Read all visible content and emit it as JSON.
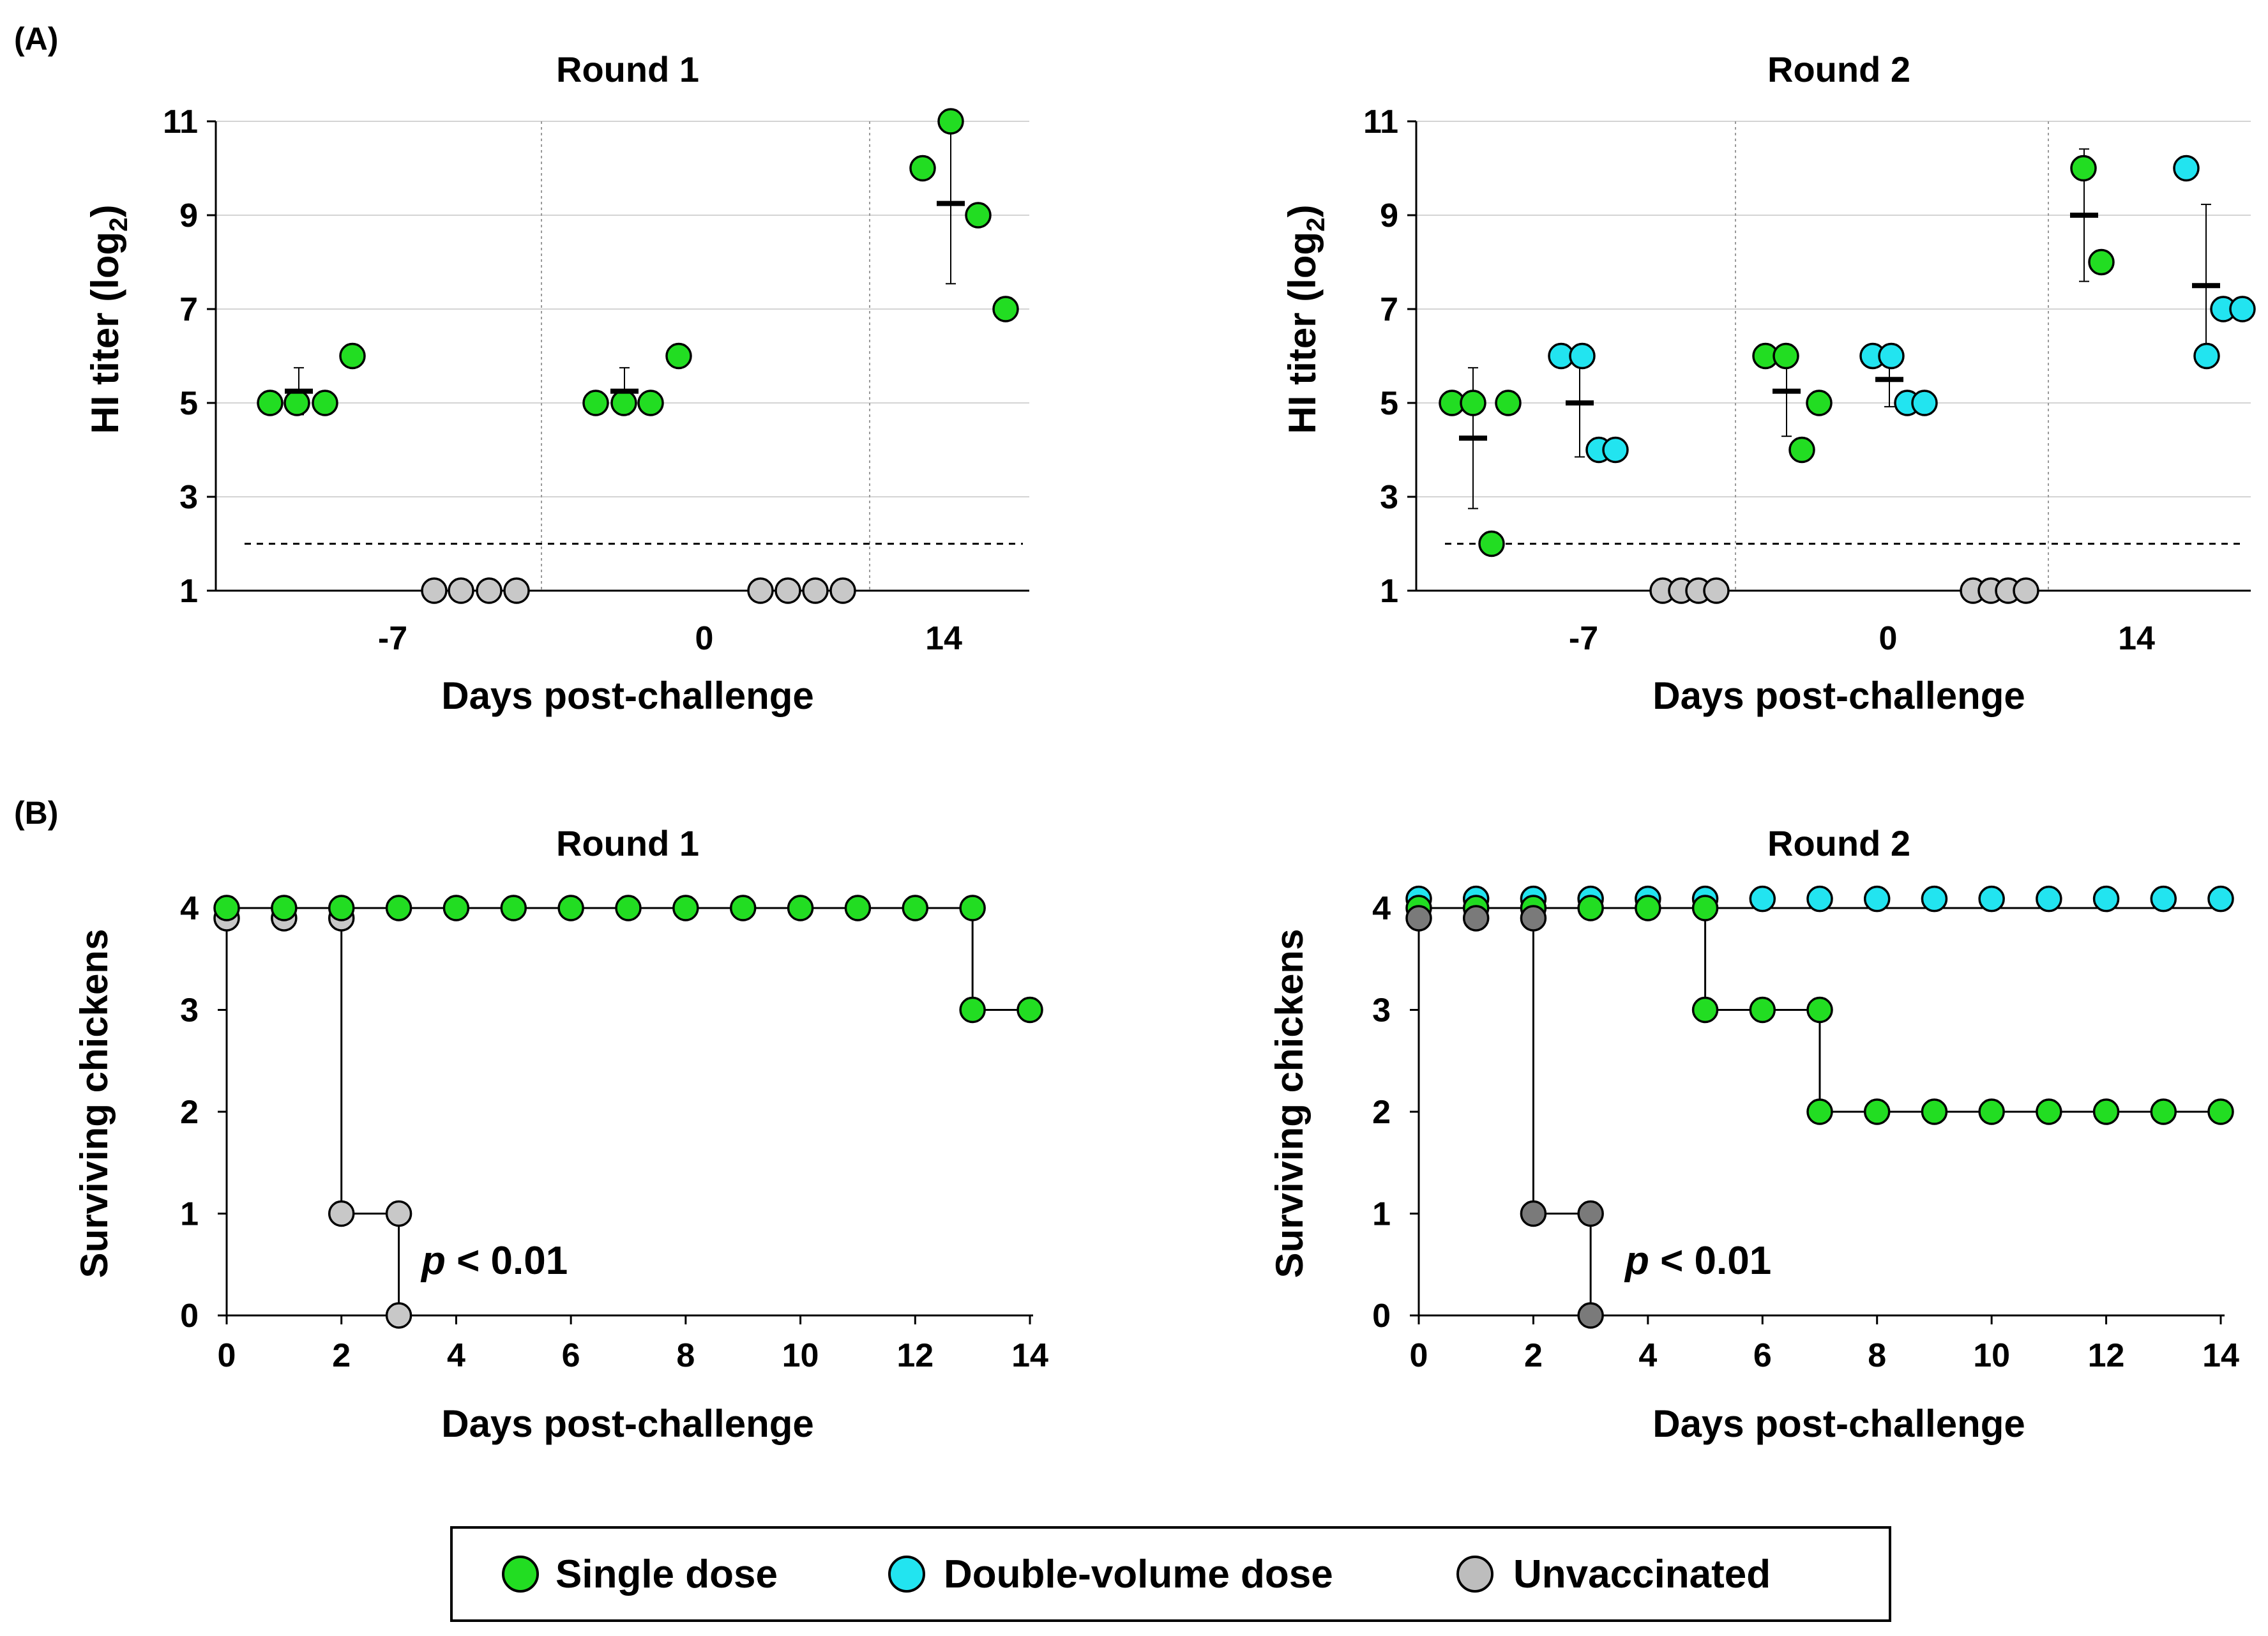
{
  "colors": {
    "single": "#22dd22",
    "double": "#22e4f0",
    "unvac_light": "#c8c8c8",
    "unvac_dark": "#7a7a7a",
    "legend_unvac": "#bdbdbd"
  },
  "panel_labels": {
    "a": "(A)",
    "b": "(B)"
  },
  "legend": {
    "items": [
      {
        "label": "Single dose",
        "color": "#22dd22"
      },
      {
        "label": "Double-volume dose",
        "color": "#22e4f0"
      },
      {
        "label": "Unvaccinated",
        "color": "#bdbdbd"
      }
    ]
  },
  "chart_data": [
    {
      "id": "A1",
      "type": "scatter",
      "title": "Round 1",
      "xlabel": "Days post-challenge",
      "ylabel_main": "HI titer (log",
      "ylabel_sub": "2",
      "ylabel_end": ")",
      "ylim": [
        1,
        11
      ],
      "yticks": [
        "1",
        "3",
        "5",
        "7",
        "9",
        "11"
      ],
      "ytick_values": [
        1,
        3,
        5,
        7,
        9,
        11
      ],
      "groups": [
        "-7",
        "0",
        "14"
      ],
      "detection_limit": 2,
      "series": [
        {
          "name": "Single dose",
          "color": "#22dd22",
          "group": "-7",
          "values": [
            5,
            5,
            5,
            6
          ],
          "mean": 5.25,
          "sd": 0.5
        },
        {
          "name": "Unvaccinated",
          "color": "#c8c8c8",
          "group": "-7",
          "values": [
            1,
            1,
            1,
            1
          ]
        },
        {
          "name": "Single dose",
          "color": "#22dd22",
          "group": "0",
          "values": [
            5,
            5,
            5,
            6
          ],
          "mean": 5.25,
          "sd": 0.5
        },
        {
          "name": "Unvaccinated",
          "color": "#c8c8c8",
          "group": "0",
          "values": [
            1,
            1,
            1,
            1
          ]
        },
        {
          "name": "Single dose",
          "color": "#22dd22",
          "group": "14",
          "values": [
            10,
            11,
            9,
            7
          ],
          "mean": 9.25,
          "sd": 1.71
        }
      ]
    },
    {
      "id": "A2",
      "type": "scatter",
      "title": "Round 2",
      "xlabel": "Days post-challenge",
      "ylabel_main": "HI titer (log",
      "ylabel_sub": "2",
      "ylabel_end": ")",
      "ylim": [
        1,
        11
      ],
      "yticks": [
        "1",
        "3",
        "5",
        "7",
        "9",
        "11"
      ],
      "ytick_values": [
        1,
        3,
        5,
        7,
        9,
        11
      ],
      "groups": [
        "-7",
        "0",
        "14"
      ],
      "detection_limit": 2,
      "series": [
        {
          "name": "Single dose",
          "color": "#22dd22",
          "group": "-7",
          "values": [
            5,
            5,
            2,
            5
          ],
          "mean": 4.25,
          "sd": 1.5
        },
        {
          "name": "Double-volume dose",
          "color": "#22e4f0",
          "group": "-7",
          "values": [
            6,
            6,
            4,
            4
          ],
          "mean": 5.0,
          "sd": 1.15
        },
        {
          "name": "Unvaccinated",
          "color": "#c8c8c8",
          "group": "-7",
          "values": [
            1,
            1,
            1,
            1
          ]
        },
        {
          "name": "Single dose",
          "color": "#22dd22",
          "group": "0",
          "values": [
            6,
            6,
            4,
            5
          ],
          "mean": 5.25,
          "sd": 0.96
        },
        {
          "name": "Double-volume dose",
          "color": "#22e4f0",
          "group": "0",
          "values": [
            6,
            6,
            5,
            5
          ],
          "mean": 5.5,
          "sd": 0.58
        },
        {
          "name": "Unvaccinated",
          "color": "#c8c8c8",
          "group": "0",
          "values": [
            1,
            1,
            1,
            1
          ]
        },
        {
          "name": "Single dose",
          "color": "#22dd22",
          "group": "14",
          "values": [
            10,
            8
          ],
          "mean": 9.0,
          "sd": 1.41
        },
        {
          "name": "Double-volume dose",
          "color": "#22e4f0",
          "group": "14",
          "values": [
            10,
            6,
            7,
            7
          ],
          "mean": 7.5,
          "sd": 1.73
        }
      ]
    },
    {
      "id": "B1",
      "type": "line",
      "title": "Round 1",
      "xlabel": "Days post-challenge",
      "ylabel": "Surviving chickens",
      "xlim": [
        0,
        14
      ],
      "ylim": [
        0,
        4
      ],
      "xticks": [
        "0",
        "2",
        "4",
        "6",
        "8",
        "10",
        "12",
        "14"
      ],
      "xtick_values": [
        0,
        2,
        4,
        6,
        8,
        10,
        12,
        14
      ],
      "yticks": [
        "0",
        "1",
        "2",
        "3",
        "4"
      ],
      "ytick_values": [
        0,
        1,
        2,
        3,
        4
      ],
      "annotation_p": "p",
      "annotation_rest": " < 0.01",
      "series": [
        {
          "name": "Unvaccinated",
          "color": "#c8c8c8",
          "x": [
            0,
            1,
            2,
            2,
            3,
            3
          ],
          "y": [
            4,
            4,
            4,
            1,
            1,
            0
          ],
          "marker_x": [
            0,
            1,
            2,
            2,
            3,
            3
          ],
          "marker_y": [
            3.9,
            3.9,
            3.9,
            1,
            1,
            0
          ]
        },
        {
          "name": "Single dose",
          "color": "#22dd22",
          "x": [
            0,
            1,
            2,
            3,
            4,
            5,
            6,
            7,
            8,
            9,
            10,
            11,
            12,
            13,
            13,
            14
          ],
          "y": [
            4,
            4,
            4,
            4,
            4,
            4,
            4,
            4,
            4,
            4,
            4,
            4,
            4,
            4,
            3,
            3
          ],
          "marker_x": [
            0,
            1,
            2,
            3,
            4,
            5,
            6,
            7,
            8,
            9,
            10,
            11,
            12,
            13,
            13,
            14
          ],
          "marker_y": [
            4,
            4,
            4,
            4,
            4,
            4,
            4,
            4,
            4,
            4,
            4,
            4,
            4,
            4,
            3,
            3
          ]
        }
      ]
    },
    {
      "id": "B2",
      "type": "line",
      "title": "Round 2",
      "xlabel": "Days post-challenge",
      "ylabel": "Surviving chickens",
      "xlim": [
        0,
        14
      ],
      "ylim": [
        0,
        4
      ],
      "xticks": [
        "0",
        "2",
        "4",
        "6",
        "8",
        "10",
        "12",
        "14"
      ],
      "xtick_values": [
        0,
        2,
        4,
        6,
        8,
        10,
        12,
        14
      ],
      "yticks": [
        "0",
        "1",
        "2",
        "3",
        "4"
      ],
      "ytick_values": [
        0,
        1,
        2,
        3,
        4
      ],
      "annotation_p": "p",
      "annotation_rest": " < 0.01",
      "series": [
        {
          "name": "Double-volume dose",
          "color": "#22e4f0",
          "x": [
            0,
            1,
            2,
            3,
            4,
            5,
            6,
            7,
            8,
            9,
            10,
            11,
            12,
            13,
            14
          ],
          "y": [
            4,
            4,
            4,
            4,
            4,
            4,
            4,
            4,
            4,
            4,
            4,
            4,
            4,
            4,
            4
          ],
          "marker_x": [
            0,
            1,
            2,
            3,
            4,
            5,
            6,
            7,
            8,
            9,
            10,
            11,
            12,
            13,
            14
          ],
          "marker_y": [
            4.09,
            4.09,
            4.09,
            4.09,
            4.09,
            4.09,
            4.09,
            4.09,
            4.09,
            4.09,
            4.09,
            4.09,
            4.09,
            4.09,
            4.09
          ]
        },
        {
          "name": "Single dose",
          "color": "#22dd22",
          "x": [
            0,
            1,
            2,
            3,
            4,
            5,
            5,
            6,
            7,
            7,
            8,
            9,
            10,
            11,
            12,
            13,
            14
          ],
          "y": [
            4,
            4,
            4,
            4,
            4,
            4,
            3,
            3,
            3,
            2,
            2,
            2,
            2,
            2,
            2,
            2,
            2
          ],
          "marker_x": [
            0,
            1,
            2,
            3,
            4,
            5,
            5,
            6,
            7,
            7,
            8,
            9,
            10,
            11,
            12,
            13,
            14
          ],
          "marker_y": [
            4,
            4,
            4,
            4,
            4,
            4,
            3,
            3,
            3,
            2,
            2,
            2,
            2,
            2,
            2,
            2,
            2
          ]
        },
        {
          "name": "Unvaccinated",
          "color": "#7a7a7a",
          "x": [
            0,
            1,
            2,
            2,
            3,
            3
          ],
          "y": [
            4,
            4,
            4,
            1,
            1,
            0
          ],
          "marker_x": [
            0,
            1,
            2,
            2,
            3,
            3
          ],
          "marker_y": [
            3.9,
            3.9,
            3.9,
            1,
            1,
            0
          ]
        }
      ]
    }
  ]
}
